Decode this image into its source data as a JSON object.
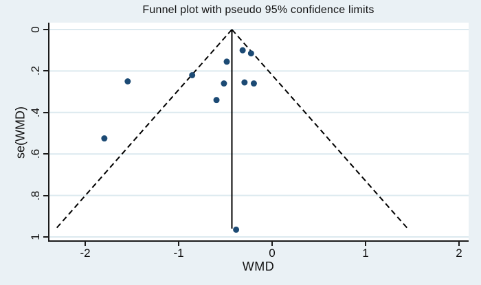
{
  "chart_data": {
    "type": "scatter",
    "title": "Funnel plot with pseudo 95% confidence limits",
    "xlabel": "WMD",
    "ylabel": "se(WMD)",
    "x_ticks": [
      -2,
      -1,
      0,
      1,
      2
    ],
    "x_tick_labels": [
      "-2",
      "-1",
      "0",
      "1",
      "2"
    ],
    "y_ticks": [
      0,
      0.2,
      0.4,
      0.6,
      0.8,
      1
    ],
    "y_tick_labels": [
      "0",
      ".2",
      ".4",
      ".6",
      ".8",
      "1"
    ],
    "xlim": [
      -2.4,
      2.1
    ],
    "ylim": [
      0,
      1.02
    ],
    "y_axis_reversed": true,
    "grid": "horizontal-only",
    "legend": "none",
    "points": [
      {
        "wmd": -0.33,
        "se": 0.1
      },
      {
        "wmd": -0.24,
        "se": 0.115
      },
      {
        "wmd": -0.5,
        "se": 0.155
      },
      {
        "wmd": -0.87,
        "se": 0.22
      },
      {
        "wmd": -1.56,
        "se": 0.25
      },
      {
        "wmd": -0.53,
        "se": 0.26
      },
      {
        "wmd": -0.31,
        "se": 0.255
      },
      {
        "wmd": -0.21,
        "se": 0.26
      },
      {
        "wmd": -0.61,
        "se": 0.34
      },
      {
        "wmd": -1.81,
        "se": 0.525
      },
      {
        "wmd": -0.4,
        "se": 0.965
      }
    ],
    "funnel": {
      "center_wmd": -0.445,
      "z": 1.96,
      "max_se": 0.96,
      "center_line_style": "solid-vertical",
      "ci_line_style": "dashed"
    },
    "colors": {
      "marker": "#1c4a74",
      "line": "#000000",
      "grid": "#dce9ef",
      "plot_bg": "#ffffff",
      "page_bg": "#eaf1f5",
      "axis": "#1a1a1a",
      "text": "#111111"
    }
  }
}
